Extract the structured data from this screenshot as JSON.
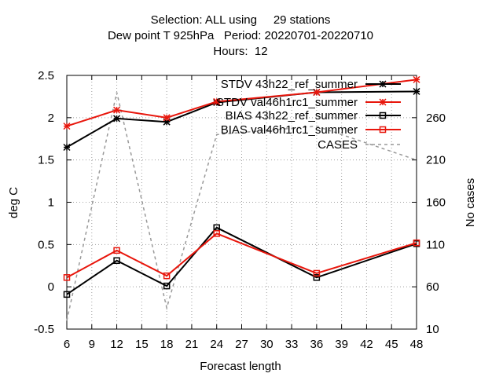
{
  "chart_data": {
    "type": "line",
    "title_lines": [
      "Selection: ALL using     29 stations",
      "Dew point T 925hPa   Period: 20220701-20220710",
      "Hours:  12"
    ],
    "xlabel": "Forecast length",
    "ylabel": "deg C",
    "y2label": "No cases",
    "xlim": [
      6,
      48
    ],
    "ylim": [
      -0.5,
      2.5
    ],
    "y2lim": [
      10,
      310
    ],
    "x_ticks": [
      6,
      9,
      12,
      15,
      18,
      21,
      24,
      27,
      30,
      33,
      36,
      39,
      42,
      45,
      48
    ],
    "y_ticks": [
      "-0.5",
      "0",
      "0.5",
      "1",
      "1.5",
      "2",
      "2.5"
    ],
    "y2_ticks": [
      10,
      60,
      110,
      160,
      210,
      260
    ],
    "x": [
      6,
      12,
      18,
      24,
      36,
      48
    ],
    "grid": true,
    "legend_position": "top-right",
    "series": [
      {
        "name": "STDV 43h22_ref_summer",
        "legend_text": "STDV 43h22_ref_summer",
        "axis": "y",
        "color": "#000000",
        "marker": "star",
        "dash": false,
        "values": [
          1.65,
          1.99,
          1.95,
          2.18,
          2.3,
          2.31
        ]
      },
      {
        "name": "STDV val46h1rc1_summer",
        "legend_text": "STDV val46h1rc1_summer",
        "axis": "y",
        "color": "#e8160c",
        "marker": "star",
        "dash": false,
        "values": [
          1.9,
          2.09,
          2.0,
          2.19,
          2.3,
          2.45
        ]
      },
      {
        "name": "BIAS 43h22_ref_summer",
        "legend_text": "BIAS 43h22_ref_summer",
        "axis": "y",
        "color": "#000000",
        "marker": "square",
        "dash": false,
        "values": [
          -0.09,
          0.31,
          0.01,
          0.7,
          0.11,
          0.51
        ]
      },
      {
        "name": "BIAS val46h1rc1_summer",
        "legend_text": "BIAS val46h1rc1_summer",
        "axis": "y",
        "color": "#e8160c",
        "marker": "square",
        "dash": false,
        "values": [
          0.11,
          0.43,
          0.13,
          0.63,
          0.16,
          0.52
        ]
      },
      {
        "name": "CASES",
        "legend_text": "CASES",
        "axis": "y2",
        "color": "#999999",
        "marker": "none",
        "dash": true,
        "values": [
          20,
          290,
          35,
          240,
          250,
          210
        ]
      }
    ]
  }
}
